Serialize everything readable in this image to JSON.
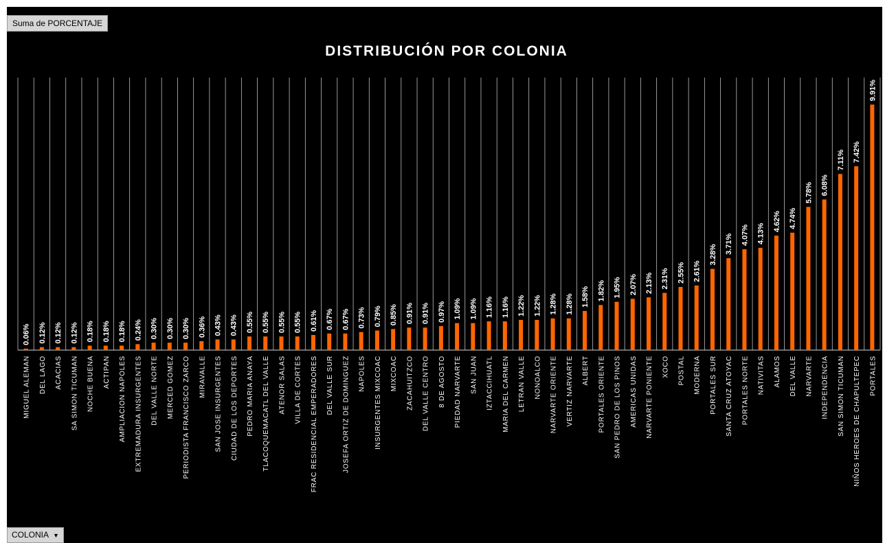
{
  "pivot": {
    "value_field_label": "Suma de PORCENTAJE",
    "axis_field_label": "COLONIA"
  },
  "colors": {
    "bar": "#ff6600",
    "background": "#000000",
    "text": "#ffffff",
    "grid": "#bfbfbf"
  },
  "chart_data": {
    "type": "bar",
    "title": "DISTRIBUCIÓN POR COLONIA",
    "xlabel": "",
    "ylabel": "",
    "ylim": [
      0,
      11
    ],
    "grid": true,
    "categories": [
      "MIGUEL ALEMAN",
      "DEL LAGO",
      "ACACIAS",
      "SA SIMON TICUMAN",
      "NOCHE BUENA",
      "ACTIPAN",
      "AMPLIACION NAPOLES",
      "EXTREMADURA INSURGENTES",
      "DEL VALLE NORTE",
      "MERCED GOMEZ",
      "PERIODISTA FRANCISCO ZARCO",
      "MIRAVALLE",
      "SAN JOSE INSURGENTES",
      "CIUDAD DE LOS DEPORTES",
      "PEDRO MARIA ANAYA",
      "TLACOQUEMACATL DEL VALLE",
      "ATENOR SALAS",
      "VILLA DE CORTES",
      "FRAC RESIDENCIAL EMPERADORES",
      "DEL VALLE SUR",
      "JOSEFA ORTIZ DE DOMINGUEZ",
      "NAPOLES",
      "INSURGENTES MIXCOAC",
      "MIXCOAC",
      "ZACAHUITZCO",
      "DEL VALLE CENTRO",
      "8 DE AGOSTO",
      "PIEDAD NARVARTE",
      "SAN JUAN",
      "IZTACCIHUATL",
      "MARIA DEL CARMEN",
      "LETRAN VALLE",
      "NONOALCO",
      "NARVARTE ORIENTE",
      "VERTIZ NARVARTE",
      "ALBERT",
      "PORTALES ORIENTE",
      "SAN PEDRO DE LOS PINOS",
      "AMERICAS UNIDAS",
      "NARVARTE PONIENTE",
      "XOCO",
      "POSTAL",
      "MODERNA",
      "PORTALES SUR",
      "SANTA CRUZ ATOYAC",
      "PORTALES NORTE",
      "NATIVITAS",
      "ALAMOS",
      "DEL VALLE",
      "NARVARTE",
      "INDEPENDENCIA",
      "SAN SIMON TICUMAN",
      "NIÑOS HEROES DE CHAPULTEPEC",
      "PORTALES"
    ],
    "values": [
      0.06,
      0.12,
      0.12,
      0.12,
      0.18,
      0.18,
      0.18,
      0.24,
      0.3,
      0.3,
      0.3,
      0.36,
      0.43,
      0.43,
      0.55,
      0.55,
      0.55,
      0.55,
      0.61,
      0.67,
      0.67,
      0.73,
      0.79,
      0.85,
      0.91,
      0.91,
      0.97,
      1.09,
      1.09,
      1.16,
      1.16,
      1.22,
      1.22,
      1.28,
      1.28,
      1.58,
      1.82,
      1.95,
      2.07,
      2.13,
      2.31,
      2.55,
      2.61,
      3.28,
      3.71,
      4.07,
      4.13,
      4.62,
      4.74,
      5.78,
      6.08,
      7.11,
      7.42,
      9.91
    ],
    "data_labels": [
      "0.06%",
      "0.12%",
      "0.12%",
      "0.12%",
      "0.18%",
      "0.18%",
      "0.18%",
      "0.24%",
      "0.30%",
      "0.30%",
      "0.30%",
      "0.36%",
      "0.43%",
      "0.43%",
      "0.55%",
      "0.55%",
      "0.55%",
      "0.55%",
      "0.61%",
      "0.67%",
      "0.67%",
      "0.73%",
      "0.79%",
      "0.85%",
      "0.91%",
      "0.91%",
      "0.97%",
      "1.09%",
      "1.09%",
      "1.16%",
      "1.16%",
      "1.22%",
      "1.22%",
      "1.28%",
      "1.28%",
      "1.58%",
      "1.82%",
      "1.95%",
      "2.07%",
      "2.13%",
      "2.31%",
      "2.55%",
      "2.61%",
      "3.28%",
      "3.71%",
      "4.07%",
      "4.13%",
      "4.62%",
      "4.74%",
      "5.78%",
      "6.08%",
      "7.11%",
      "7.42%",
      "9.91%"
    ]
  }
}
